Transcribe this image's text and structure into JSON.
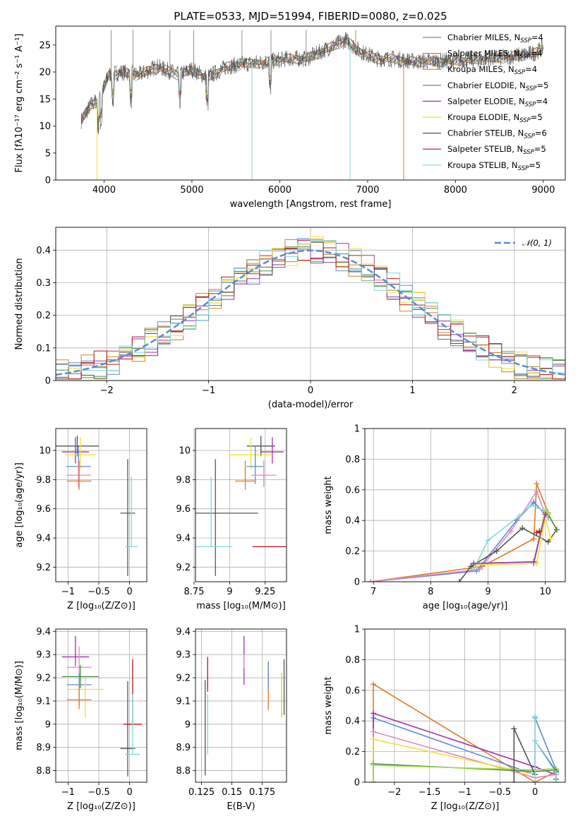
{
  "title": "PLATE=0533, MJD=51994, FIBERID=0080, z=0.025",
  "colors": {
    "chabrier_miles": "#5b8bd6",
    "salpeter_miles": "#e07a24",
    "kroupa_miles": "#b58a2a",
    "chabrier_elodie": "#4a8a4a",
    "salpeter_elodie": "#a030b0",
    "kroupa_elodie": "#f0e030",
    "chabrier_stelib": "#555555",
    "salpeter_stelib": "#b01818",
    "kroupa_stelib": "#7fd8d8",
    "pink": "#e088c0",
    "lime": "#a8e040",
    "normal": "#5b8bd6",
    "grid": "#b0b0b0"
  },
  "chart_data": [
    {
      "id": "spectrum",
      "type": "line",
      "title": "PLATE=0533, MJD=51994, FIBERID=0080, z=0.025",
      "xlabel": "wavelength [Angstrom, rest frame]",
      "ylabel": "Flux [fλ10⁻¹⁷ erg cm⁻² s⁻¹ A⁻¹]",
      "xlim": [
        3450,
        9250
      ],
      "ylim": [
        0,
        28.5
      ],
      "xticks": [
        4000,
        5000,
        6000,
        7000,
        8000,
        9000
      ],
      "yticks": [
        0,
        5,
        10,
        15,
        20,
        25
      ],
      "grid": false,
      "legend_position": "top-right",
      "legend": [
        {
          "label": "Chabrier MILES, N",
          "sub": "SSP",
          "tail": "=4",
          "color": "#5b8bd6"
        },
        {
          "label": "Salpeter MILES, N",
          "sub": "SSP",
          "tail": "=4",
          "color": "#e07a24"
        },
        {
          "label": "Kroupa MILES, N",
          "sub": "SSP",
          "tail": "=4",
          "color": "#b58a2a"
        },
        {
          "label": "Chabrier ELODIE, N",
          "sub": "SSP",
          "tail": "=5",
          "color": "#4a8a4a"
        },
        {
          "label": "Salpeter ELODIE, N",
          "sub": "SSP",
          "tail": "=4",
          "color": "#a030b0"
        },
        {
          "label": "Kroupa ELODIE, N",
          "sub": "SSP",
          "tail": "=5",
          "color": "#f0e030"
        },
        {
          "label": "Chabrier STELIB, N",
          "sub": "SSP",
          "tail": "=6",
          "color": "#555555"
        },
        {
          "label": "Salpeter STELIB, N",
          "sub": "SSP",
          "tail": "=5",
          "color": "#b01818"
        },
        {
          "label": "Kroupa STELIB, N",
          "sub": "SSP",
          "tail": "=5",
          "color": "#7fd8d8"
        }
      ],
      "continuum_nodes": [
        [
          3740,
          11
        ],
        [
          3850,
          14
        ],
        [
          3950,
          15
        ],
        [
          4050,
          19.5
        ],
        [
          4200,
          20
        ],
        [
          4400,
          19.5
        ],
        [
          4600,
          21
        ],
        [
          4860,
          19.5
        ],
        [
          5000,
          20.5
        ],
        [
          5170,
          19
        ],
        [
          5400,
          21
        ],
        [
          5600,
          21.5
        ],
        [
          5900,
          22
        ],
        [
          6100,
          22.5
        ],
        [
          6300,
          22.5
        ],
        [
          6563,
          24.5
        ],
        [
          6750,
          26
        ],
        [
          6900,
          24
        ],
        [
          7100,
          22.5
        ],
        [
          7300,
          22.5
        ],
        [
          7500,
          22
        ],
        [
          7800,
          22
        ],
        [
          8200,
          22.3
        ],
        [
          8600,
          22.8
        ],
        [
          8900,
          23.5
        ],
        [
          9000,
          24.5
        ]
      ],
      "absorption_lines": [
        3934,
        3969,
        4101,
        4304,
        4861,
        5175,
        5890
      ],
      "sky_spikes_up": [
        4080,
        4330,
        4750,
        5020,
        5570,
        5900,
        6300,
        6864
      ],
      "sky_spikes_down": [
        3920,
        5683,
        6800,
        7410
      ]
    },
    {
      "id": "residual_histogram",
      "type": "line",
      "xlabel": "(data-model)/error",
      "ylabel": "Normed distribution",
      "xlim": [
        -2.5,
        2.5
      ],
      "ylim": [
        0,
        0.47
      ],
      "xticks": [
        -2,
        -1,
        0,
        1,
        2
      ],
      "yticks": [
        0.0,
        0.1,
        0.2,
        0.3,
        0.4
      ],
      "grid": true,
      "legend_position": "top-right",
      "reference_curve": {
        "label": "𝒩(0, 1)",
        "mean": 0,
        "sigma": 1
      },
      "bins": 40,
      "n_series": 9
    },
    {
      "id": "age_vs_metallicity",
      "type": "scatter",
      "xlabel": "Z [log₁₀(Z/Z⊙)]",
      "ylabel": "age  [log₁₀(age/yr)]",
      "xlim": [
        -1.2,
        0.28
      ],
      "ylim": [
        9.1,
        10.15
      ],
      "xticks": [
        -1.0,
        -0.5,
        0.0
      ],
      "yticks": [
        9.2,
        9.4,
        9.6,
        9.8,
        10.0
      ],
      "grid": true,
      "points": [
        {
          "x": -0.85,
          "y": 10.03,
          "xerr": 0.35,
          "yerr": [
            0.07,
            0.07
          ],
          "color": "#555555"
        },
        {
          "x": -0.88,
          "y": 9.99,
          "xerr": 0.22,
          "yerr": [
            0.08,
            0.1
          ],
          "color": "#a030b0"
        },
        {
          "x": -0.8,
          "y": 9.97,
          "xerr": 0.25,
          "yerr": [
            0.1,
            0.12
          ],
          "color": "#f0e030"
        },
        {
          "x": -0.83,
          "y": 9.89,
          "xerr": 0.2,
          "yerr": [
            0.12,
            0.14
          ],
          "color": "#5b8bd6"
        },
        {
          "x": -0.83,
          "y": 9.83,
          "xerr": 0.2,
          "yerr": [
            0.08,
            0.1
          ],
          "color": "#e088c0"
        },
        {
          "x": -0.82,
          "y": 9.79,
          "xerr": 0.2,
          "yerr": [
            0.06,
            0.14
          ],
          "color": "#e07a24"
        },
        {
          "x": -0.03,
          "y": 9.57,
          "xerr": 0.12,
          "yerr": [
            0.43,
            0.37
          ],
          "color": "#555555"
        },
        {
          "x": 0.03,
          "y": 9.34,
          "xerr": 0.1,
          "yerr": [
            0.0,
            0.48
          ],
          "color": "#7fd8d8"
        }
      ]
    },
    {
      "id": "age_vs_mass",
      "type": "scatter",
      "xlabel": "mass [log₁₀(M/M⊙)]",
      "ylabel": "",
      "xlim": [
        8.76,
        9.4
      ],
      "ylim": [
        9.1,
        10.15
      ],
      "xticks": [
        8.75,
        9.0,
        9.25
      ],
      "yticks": [
        9.2,
        9.4,
        9.6,
        9.8,
        10.0
      ],
      "grid": true,
      "points": [
        {
          "x": 9.22,
          "y": 10.03,
          "xerr": 0.1,
          "yerr": [
            0.07,
            0.07
          ],
          "color": "#555555"
        },
        {
          "x": 9.3,
          "y": 9.99,
          "xerr": 0.08,
          "yerr": [
            0.08,
            0.1
          ],
          "color": "#a030b0"
        },
        {
          "x": 9.15,
          "y": 9.97,
          "xerr": 0.15,
          "yerr": [
            0.1,
            0.12
          ],
          "color": "#f0e030"
        },
        {
          "x": 9.18,
          "y": 9.89,
          "xerr": 0.06,
          "yerr": [
            0.12,
            0.14
          ],
          "color": "#5b8bd6"
        },
        {
          "x": 9.24,
          "y": 9.83,
          "xerr": 0.09,
          "yerr": [
            0.08,
            0.1
          ],
          "color": "#e088c0"
        },
        {
          "x": 9.11,
          "y": 9.79,
          "xerr": 0.07,
          "yerr": [
            0.06,
            0.14
          ],
          "color": "#e07a24"
        },
        {
          "x": 8.9,
          "y": 9.57,
          "xerr": 0.3,
          "yerr": [
            0.43,
            0.37
          ],
          "color": "#555555"
        },
        {
          "x": 8.87,
          "y": 9.34,
          "xerr": 0.15,
          "yerr": [
            0.0,
            0.48
          ],
          "color": "#7fd8d8"
        },
        {
          "x": 9.28,
          "y": 9.34,
          "xerr": 0.12,
          "yerr": [
            0.0,
            0.0
          ],
          "color": "#b01818"
        }
      ]
    },
    {
      "id": "cumulative_weight_vs_age",
      "type": "line",
      "xlabel": "age  [log₁₀(age/yr)]",
      "ylabel": "mass weight",
      "xlim": [
        6.85,
        10.35
      ],
      "ylim": [
        0,
        1.0
      ],
      "xticks": [
        7,
        8,
        9,
        10
      ],
      "yticks": [
        0.0,
        0.2,
        0.4,
        0.6,
        0.8,
        1.0
      ],
      "grid": true,
      "series": [
        {
          "color": "#e07a24",
          "x": [
            6.95,
            8.9,
            9.8,
            9.85,
            10.05
          ],
          "y": [
            0.0,
            0.1,
            0.28,
            0.64,
            0.45
          ]
        },
        {
          "color": "#5b8bd6",
          "x": [
            6.95,
            8.8,
            9.5,
            9.8,
            10.05
          ],
          "y": [
            0.0,
            0.07,
            0.4,
            0.52,
            0.42
          ]
        },
        {
          "color": "#e088c0",
          "x": [
            6.95,
            8.85,
            9.4,
            9.85,
            10.0
          ],
          "y": [
            0.0,
            0.08,
            0.33,
            0.59,
            0.44
          ]
        },
        {
          "color": "#555555",
          "x": [
            8.5,
            8.7,
            9.15,
            9.6,
            10.05,
            10.2
          ],
          "y": [
            0.0,
            0.1,
            0.2,
            0.35,
            0.26,
            0.34
          ]
        },
        {
          "color": "#4a8a4a",
          "x": [
            8.75,
            9.8,
            10.0,
            10.05,
            10.2
          ],
          "y": [
            0.11,
            0.12,
            0.45,
            0.44,
            0.34
          ]
        },
        {
          "color": "#a8e040",
          "x": [
            8.75,
            9.8,
            10.0,
            10.05
          ],
          "y": [
            0.12,
            0.13,
            0.47,
            0.44
          ]
        },
        {
          "color": "#f0e030",
          "x": [
            8.8,
            9.85,
            10.0,
            10.1
          ],
          "y": [
            0.11,
            0.12,
            0.42,
            0.28
          ]
        },
        {
          "color": "#7fd8d8",
          "x": [
            8.75,
            9.0,
            9.55,
            9.75,
            10.0
          ],
          "y": [
            0.08,
            0.27,
            0.43,
            0.5,
            0.46
          ]
        },
        {
          "color": "#a030b0",
          "x": [
            8.75,
            9.8,
            10.0
          ],
          "y": [
            0.12,
            0.13,
            0.44
          ]
        },
        {
          "color": "#b01818",
          "x": [
            9.85,
            9.9
          ],
          "y": [
            0.32,
            0.33
          ]
        }
      ]
    },
    {
      "id": "mass_vs_metallicity",
      "type": "scatter",
      "xlabel": "Z [log₁₀(Z/Z⊙)]",
      "ylabel": "mass [log₁₀(M/M⊙)]",
      "xlim": [
        -1.2,
        0.28
      ],
      "ylim": [
        8.75,
        9.41
      ],
      "xticks": [
        -1.0,
        -0.5,
        0.0
      ],
      "yticks": [
        8.8,
        8.9,
        9.0,
        9.1,
        9.2,
        9.3,
        9.4
      ],
      "grid": true,
      "points": [
        {
          "x": -0.88,
          "y": 9.29,
          "xerr": 0.22,
          "yerr": [
            0.04,
            0.09
          ],
          "color": "#a030b0"
        },
        {
          "x": -0.82,
          "y": 9.245,
          "xerr": 0.2,
          "yerr": [
            0.04,
            0.09
          ],
          "color": "#e088c0"
        },
        {
          "x": -0.8,
          "y": 9.205,
          "xerr": 0.3,
          "yerr": [
            0.05,
            0.05
          ],
          "color": "#4a8a4a"
        },
        {
          "x": -0.82,
          "y": 9.17,
          "xerr": 0.2,
          "yerr": [
            0.09,
            0.05
          ],
          "color": "#5b8bd6"
        },
        {
          "x": -0.72,
          "y": 9.15,
          "xerr": 0.3,
          "yerr": [
            0.12,
            0.05
          ],
          "color": "#f0e030"
        },
        {
          "x": -0.82,
          "y": 9.105,
          "xerr": 0.2,
          "yerr": [
            0.04,
            0.06
          ],
          "color": "#e07a24"
        },
        {
          "x": -0.03,
          "y": 8.895,
          "xerr": 0.12,
          "yerr": [
            0.12,
            0.29
          ],
          "color": "#555555"
        },
        {
          "x": 0.05,
          "y": 9.0,
          "xerr": 0.15,
          "yerr": [
            0.0,
            0.28
          ],
          "color": "#b01818"
        },
        {
          "x": 0.05,
          "y": 8.87,
          "xerr": 0.12,
          "yerr": [
            0.0,
            0.26
          ],
          "color": "#7fd8d8"
        }
      ]
    },
    {
      "id": "mass_vs_extinction",
      "type": "scatter",
      "xlabel": "E(B-V)",
      "ylabel": "",
      "xlim": [
        0.12,
        0.195
      ],
      "ylim": [
        8.75,
        9.41
      ],
      "xticks": [
        0.125,
        0.15,
        0.175
      ],
      "yticks": [
        8.8,
        8.9,
        9.0,
        9.1,
        9.2,
        9.3,
        9.4
      ],
      "grid": true,
      "points": [
        {
          "x": 0.128,
          "y": 9.0,
          "xerr": 0,
          "yerr": [
            0.22,
            0.19
          ],
          "color": "#555555"
        },
        {
          "x": 0.13,
          "y": 9.2,
          "xerr": 0,
          "yerr": [
            0.06,
            0.09
          ],
          "color": "#b01818"
        },
        {
          "x": 0.13,
          "y": 9.0,
          "xerr": 0,
          "yerr": [
            0.13,
            0.13
          ],
          "color": "#7fd8d8"
        },
        {
          "x": 0.16,
          "y": 9.27,
          "xerr": 0,
          "yerr": [
            0.1,
            0.11
          ],
          "color": "#a030b0"
        },
        {
          "x": 0.16,
          "y": 9.26,
          "xerr": 0,
          "yerr": [
            0.02,
            0.04
          ],
          "color": "#e088c0"
        },
        {
          "x": 0.18,
          "y": 9.16,
          "xerr": 0,
          "yerr": [
            0.1,
            0.11
          ],
          "color": "#e07a24"
        },
        {
          "x": 0.18,
          "y": 9.2,
          "xerr": 0,
          "yerr": [
            0.05,
            0.07
          ],
          "color": "#5b8bd6"
        },
        {
          "x": 0.191,
          "y": 9.12,
          "xerr": 0,
          "yerr": [
            0.09,
            0.1
          ],
          "color": "#a8e040"
        },
        {
          "x": 0.193,
          "y": 9.16,
          "xerr": 0,
          "yerr": [
            0.12,
            0.12
          ],
          "color": "#555555"
        }
      ]
    },
    {
      "id": "cumulative_weight_vs_metallicity",
      "type": "line",
      "xlabel": "Z [log₁₀(Z/Z⊙)]",
      "ylabel": "mass weight",
      "xlim": [
        -2.42,
        0.43
      ],
      "ylim": [
        0,
        1.0
      ],
      "xticks": [
        -2.0,
        -1.5,
        -1.0,
        -0.5,
        0.0
      ],
      "yticks": [
        0.0,
        0.2,
        0.4,
        0.6,
        0.8,
        1.0
      ],
      "grid": true,
      "series": [
        {
          "color": "#e07a24",
          "x": [
            -2.3,
            -2.3,
            0.0,
            0.3,
            0.3
          ],
          "y": [
            0.0,
            0.64,
            0.0,
            0.07,
            0.0
          ]
        },
        {
          "color": "#5b8bd6",
          "x": [
            -2.3,
            -2.3,
            0.0,
            0.0,
            0.3
          ],
          "y": [
            0.0,
            0.42,
            0.05,
            0.42,
            0.08
          ]
        },
        {
          "color": "#a030b0",
          "x": [
            -2.3,
            -2.3,
            0.0,
            0.3
          ],
          "y": [
            0.0,
            0.45,
            0.1,
            0.05
          ]
        },
        {
          "color": "#e088c0",
          "x": [
            -2.3,
            -2.3,
            0.0,
            0.3
          ],
          "y": [
            0.0,
            0.33,
            0.03,
            0.05
          ]
        },
        {
          "color": "#f0e030",
          "x": [
            -2.3,
            -2.3,
            0.0
          ],
          "y": [
            0.0,
            0.28,
            0.05
          ]
        },
        {
          "color": "#4a8a4a",
          "x": [
            -2.3,
            -2.3,
            0.0,
            0.3
          ],
          "y": [
            0.0,
            0.12,
            0.07,
            0.08
          ]
        },
        {
          "color": "#a8e040",
          "x": [
            -2.3,
            -2.3,
            0.0,
            0.3
          ],
          "y": [
            0.0,
            0.11,
            0.08,
            0.09
          ]
        },
        {
          "color": "#555555",
          "x": [
            -0.3,
            -0.3,
            0.0,
            0.0,
            0.3,
            0.3
          ],
          "y": [
            0.0,
            0.35,
            0.05,
            0.27,
            0.07,
            0.02
          ]
        },
        {
          "color": "#7fd8d8",
          "x": [
            0.0,
            0.0,
            0.0,
            0.3,
            0.3
          ],
          "y": [
            0.0,
            0.43,
            0.27,
            0.06,
            0.0
          ]
        }
      ]
    }
  ]
}
